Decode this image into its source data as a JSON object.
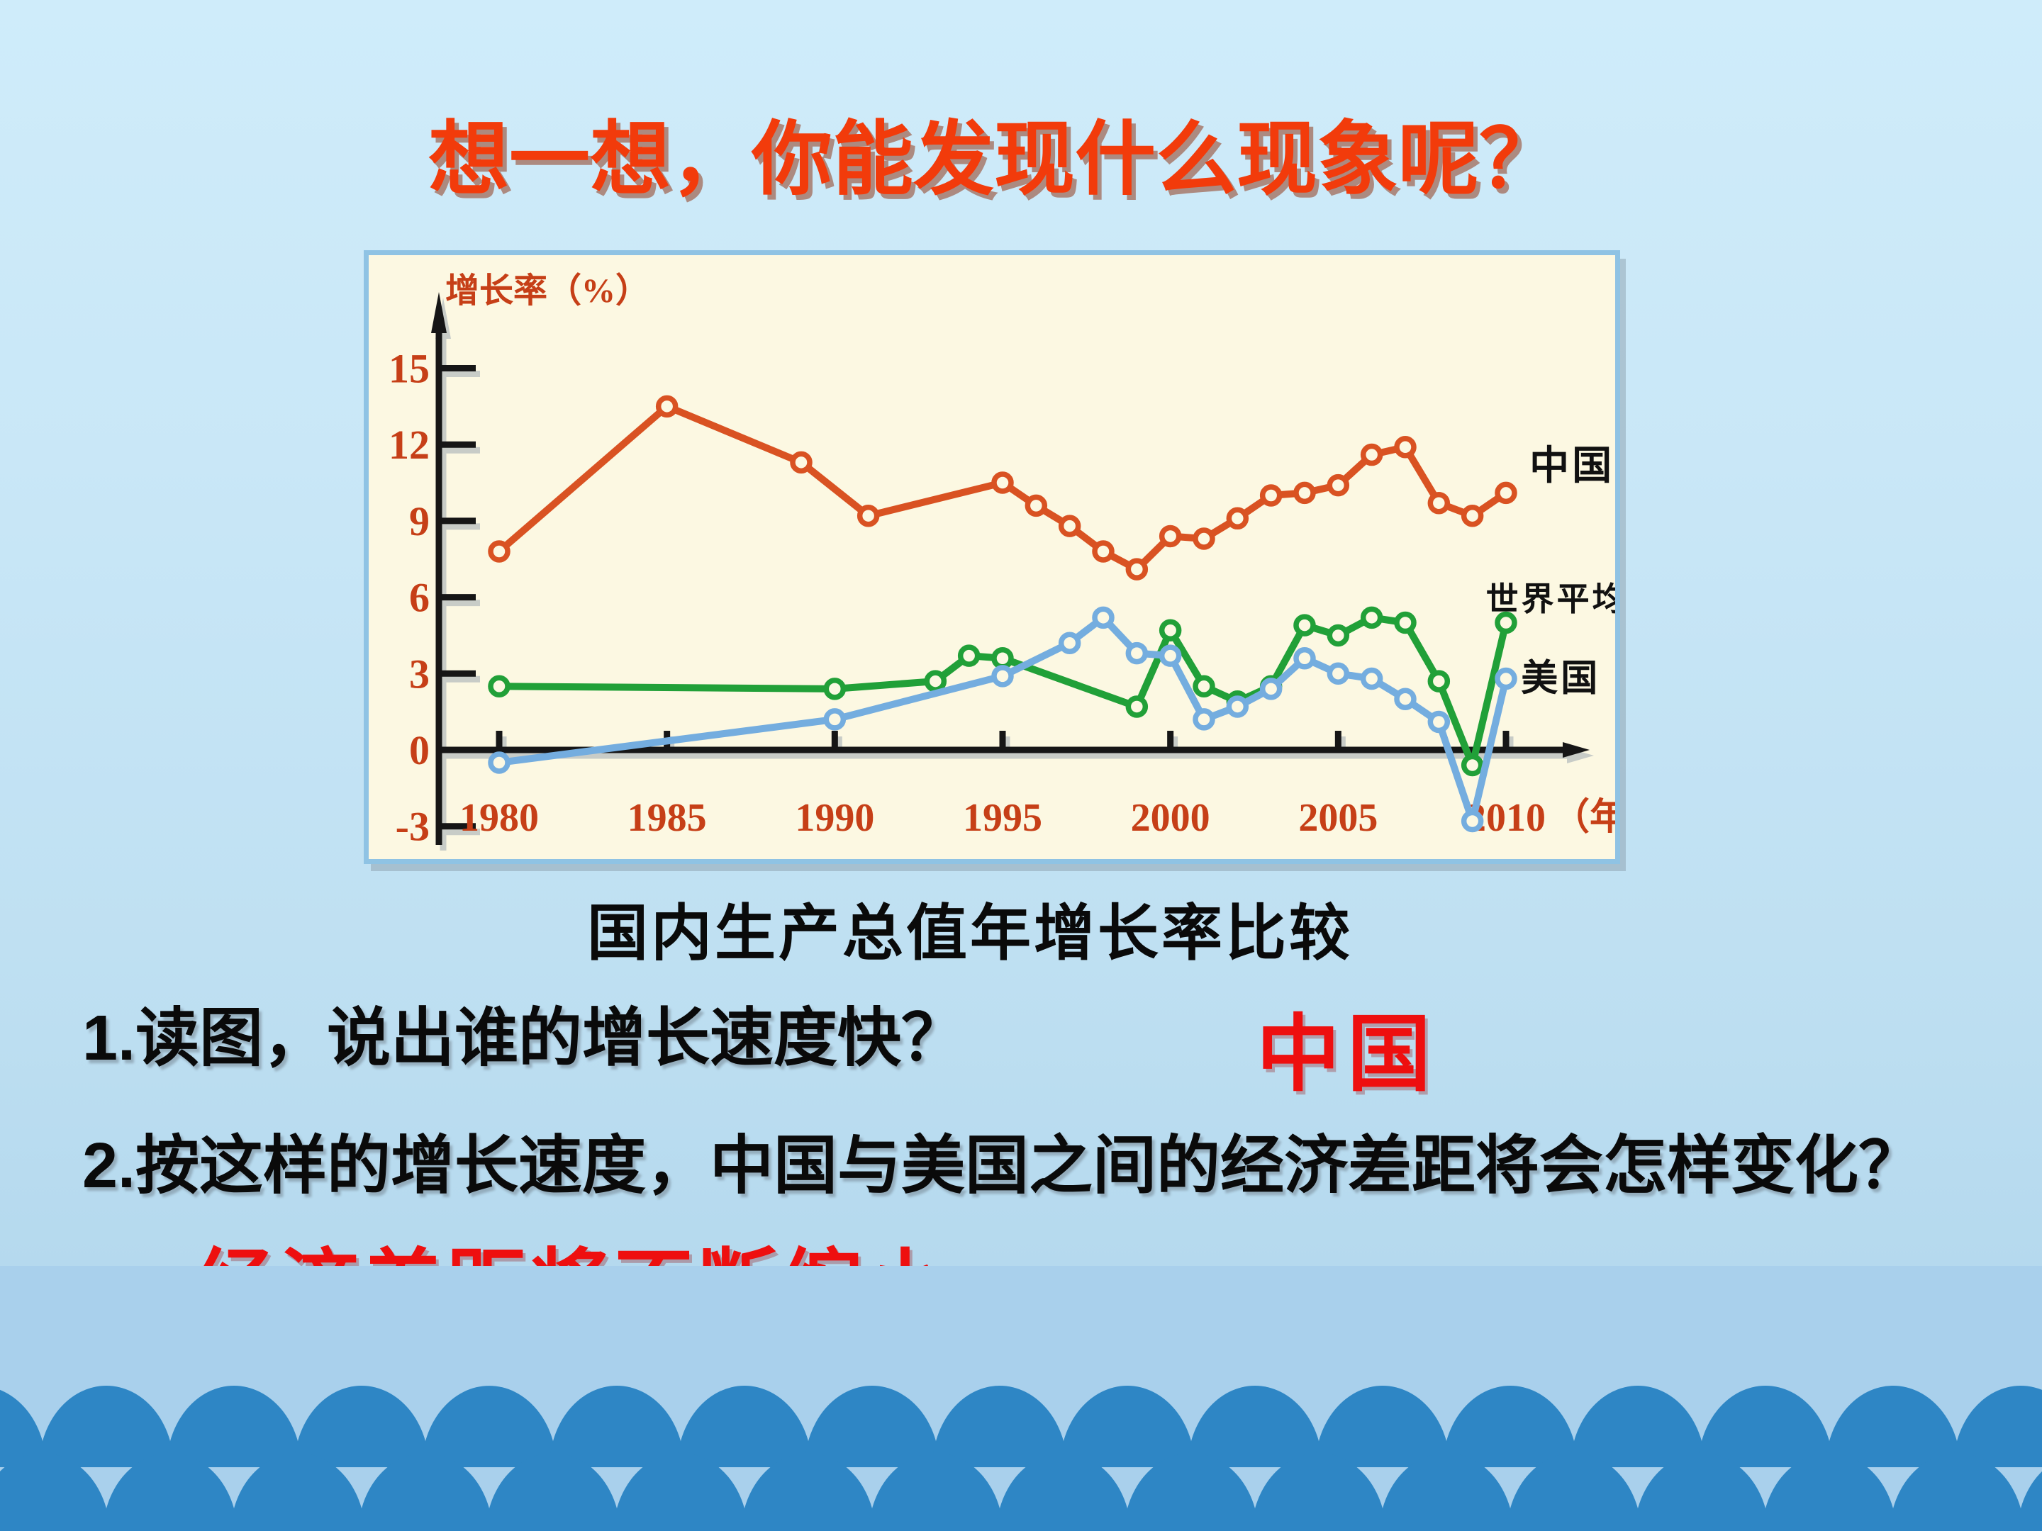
{
  "title": "想一想，你能发现什么现象呢？",
  "caption": "国内生产总值年增长率比较",
  "questions": {
    "q1_number": "1.",
    "q1_text": "读图，说出谁的增长速度快？",
    "q1_answer": "中国",
    "q2_number": "2.",
    "q2_text": "按这样的增长速度，中国与美国之间的经济差距将会怎样变化？",
    "q2_answer": "经济差距将不断缩小"
  },
  "chart_data": {
    "type": "line",
    "title": "国内生产总值年增长率比较",
    "ylabel": "增长率（%）",
    "x_axis_unit": "（年）",
    "x_ticks": [
      1980,
      1985,
      1990,
      1995,
      2000,
      2005,
      2010
    ],
    "y_ticks": [
      15,
      12,
      9,
      6,
      3,
      0,
      -3
    ],
    "xlim": [
      1978,
      2013
    ],
    "ylim": [
      -4,
      17
    ],
    "grid": false,
    "legend_position": "right-inside",
    "series": [
      {
        "name": "中国",
        "color": "#d95222",
        "label": {
          "x": 2010.7,
          "y": 11.2,
          "size": 56
        },
        "points": [
          [
            1980,
            7.8
          ],
          [
            1985,
            13.5
          ],
          [
            1989,
            11.3
          ],
          [
            1991,
            9.2
          ],
          [
            1995,
            10.5
          ],
          [
            1996,
            9.6
          ],
          [
            1997,
            8.8
          ],
          [
            1998,
            7.8
          ],
          [
            1999,
            7.1
          ],
          [
            2000,
            8.4
          ],
          [
            2001,
            8.3
          ],
          [
            2002,
            9.1
          ],
          [
            2003,
            10.0
          ],
          [
            2004,
            10.1
          ],
          [
            2005,
            10.4
          ],
          [
            2006,
            11.6
          ],
          [
            2007,
            11.9
          ],
          [
            2008,
            9.7
          ],
          [
            2009,
            9.2
          ],
          [
            2010,
            10.1
          ]
        ]
      },
      {
        "name": "世界平均",
        "color": "#21a038",
        "label": {
          "x": 2009.4,
          "y": 5.95,
          "size": 46
        },
        "points": [
          [
            1980,
            2.5
          ],
          [
            1990,
            2.4
          ],
          [
            1993,
            2.7
          ],
          [
            1994,
            3.7
          ],
          [
            1995,
            3.6
          ],
          [
            1999,
            1.7
          ],
          [
            2000,
            4.7
          ],
          [
            2001,
            2.5
          ],
          [
            2002,
            1.9
          ],
          [
            2003,
            2.5
          ],
          [
            2004,
            4.9
          ],
          [
            2005,
            4.5
          ],
          [
            2006,
            5.2
          ],
          [
            2007,
            5.0
          ],
          [
            2008,
            2.7
          ],
          [
            2009,
            -0.6
          ],
          [
            2010,
            5.0
          ]
        ]
      },
      {
        "name": "美国",
        "color": "#74addf",
        "label": {
          "x": 2010.45,
          "y": 2.85,
          "size": 52
        },
        "points": [
          [
            1980,
            -0.5
          ],
          [
            1990,
            1.2
          ],
          [
            1995,
            2.9
          ],
          [
            1997,
            4.2
          ],
          [
            1998,
            5.2
          ],
          [
            1999,
            3.8
          ],
          [
            2000,
            3.7
          ],
          [
            2001,
            1.2
          ],
          [
            2002,
            1.7
          ],
          [
            2003,
            2.4
          ],
          [
            2004,
            3.6
          ],
          [
            2005,
            3.0
          ],
          [
            2006,
            2.8
          ],
          [
            2007,
            2.0
          ],
          [
            2008,
            1.1
          ],
          [
            2009,
            -2.8
          ],
          [
            2010,
            2.8
          ]
        ]
      }
    ]
  },
  "colors": {
    "slide_bg_top": "#cfecfa",
    "slide_bg_bottom": "#b5d9ee",
    "bottom_band": "#a9d0ec",
    "wave": "#2e86c5",
    "title_text": "#f23b0b",
    "body_text": "#0a0a0a",
    "answer_text": "#ee0f0f",
    "chart_bg": "#fcf8e2",
    "chart_border": "#8fc3e4",
    "axis": "#161616",
    "axis_shadow": "#8a99a8",
    "axis_label_text": "#c63f17"
  }
}
